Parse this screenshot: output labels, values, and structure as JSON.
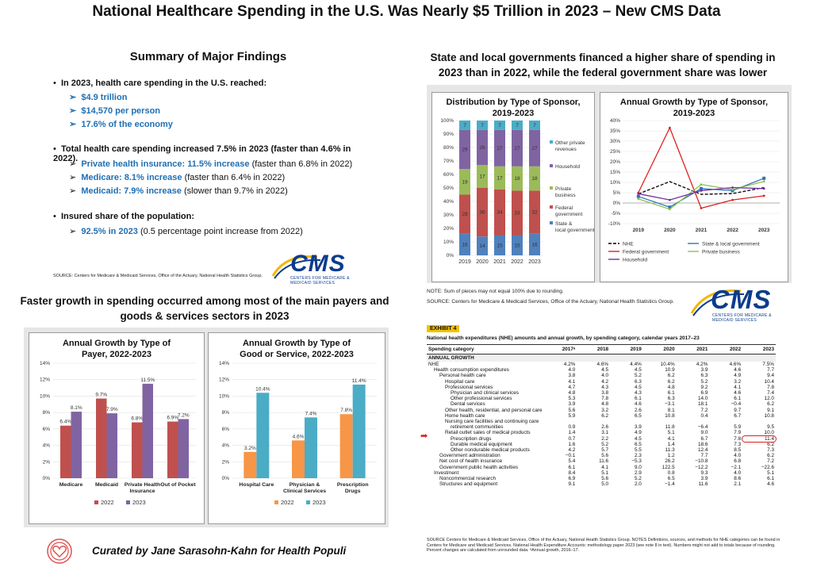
{
  "page_title": "National Healthcare Spending in the U.S. Was Nearly $5 Trillion in 2023 – New CMS Data",
  "summary": {
    "heading": "Summary of Major Findings",
    "b1": "In 2023, health care spending in the U.S. reached:",
    "b1_items": [
      "$4.9 trillion",
      "$14,570 per person",
      "17.6% of the economy"
    ],
    "b2": "Total health care spending increased 7.5% in 2023 (faster than 4.6% in 2022).",
    "b2_items": [
      {
        "hl": "Private health insurance: 11.5% increase",
        "rest": " (faster than 6.8% in 2022)"
      },
      {
        "hl": "Medicare: 8.1% increase",
        "rest": " (faster than 6.4% in 2022)"
      },
      {
        "hl": "Medicaid: 7.9% increase",
        "rest": " (slower than 9.7% in 2022)"
      }
    ],
    "b3": "Insured share of the population:",
    "b3_items": [
      {
        "hl": "92.5% in 2023",
        "rest": " (0.5 percentage point increase from 2022)"
      }
    ],
    "source": "SOURCE: Centers for Medicare & Medicaid Services, Office of the Actuary, National Health Statistics Group."
  },
  "cms_logo": {
    "text": "CMS",
    "sub": "CENTERS FOR MEDICARE & MEDICAID SERVICES"
  },
  "sponsor_heading": "State and local governments financed a higher share of spending in 2023 than in 2022, while the federal government share was lower",
  "sponsor_note": "NOTE: Sum of pieces may not equal 100% due to rounding.",
  "sponsor_source": "SOURCE: Centers for Medicare & Medicaid Services, Office of the Actuary, National Health Statistics Group.",
  "growth_heading": "Faster growth in spending occurred among most of the main payers and goods & services sectors in 2023",
  "exhibit": {
    "label": "EXHIBIT 4",
    "caption": "National health expenditures (NHE) amounts and annual growth, by spending category, calendar years 2017–23",
    "col_header": "Spending category",
    "years": [
      "2017ᵃ",
      "2018",
      "2019",
      "2020",
      "2021",
      "2022",
      "2023"
    ],
    "section": "ANNUAL GROWTH",
    "rows": [
      {
        "label": "NHE",
        "indent": 0,
        "v": [
          "4.2%",
          "4.6%",
          "4.4%",
          "10.4%",
          "4.2%",
          "4.6%",
          "7.5%"
        ]
      },
      {
        "label": "Health consumption expenditures",
        "indent": 1,
        "v": [
          "4.0",
          "4.5",
          "4.5",
          "10.9",
          "3.9",
          "4.6",
          "7.7"
        ]
      },
      {
        "label": "Personal health care",
        "indent": 2,
        "v": [
          "3.8",
          "4.0",
          "5.2",
          "6.2",
          "6.3",
          "4.9",
          "9.4"
        ]
      },
      {
        "label": "Hospital care",
        "indent": 3,
        "v": [
          "4.1",
          "4.2",
          "6.3",
          "6.2",
          "5.2",
          "3.2",
          "10.4"
        ]
      },
      {
        "label": "Professional services",
        "indent": 3,
        "v": [
          "4.7",
          "4.3",
          "4.5",
          "4.8",
          "9.2",
          "4.1",
          "7.8"
        ]
      },
      {
        "label": "Physician and clinical services",
        "indent": 4,
        "v": [
          "4.8",
          "3.8",
          "4.3",
          "6.1",
          "6.9",
          "4.6",
          "7.4"
        ]
      },
      {
        "label": "Other professional services",
        "indent": 4,
        "v": [
          "5.3",
          "7.8",
          "6.1",
          "6.3",
          "14.0",
          "6.1",
          "12.0"
        ]
      },
      {
        "label": "Dental services",
        "indent": 4,
        "v": [
          "3.9",
          "4.8",
          "4.6",
          "−3.1",
          "18.1",
          "−0.4",
          "6.2"
        ]
      },
      {
        "label": "Other health, residential, and personal care",
        "indent": 3,
        "v": [
          "5.6",
          "3.2",
          "2.6",
          "8.1",
          "7.2",
          "9.7",
          "9.1"
        ]
      },
      {
        "label": "Home health care",
        "indent": 3,
        "v": [
          "5.9",
          "6.2",
          "6.5",
          "10.8",
          "0.4",
          "6.7",
          "10.8"
        ]
      },
      {
        "label": "Nursing care facilities and continuing care",
        "indent": 3,
        "v": [
          "",
          "",
          "",
          "",
          "",
          "",
          ""
        ]
      },
      {
        "label": "retirement communities",
        "indent": 4,
        "v": [
          "0.9",
          "2.6",
          "3.9",
          "11.8",
          "−6.4",
          "5.9",
          "9.5"
        ]
      },
      {
        "label": "Retail outlet sales of medical products",
        "indent": 3,
        "v": [
          "1.4",
          "3.1",
          "4.9",
          "5.1",
          "9.0",
          "7.9",
          "10.0"
        ]
      },
      {
        "label": "Prescription drugs",
        "indent": 4,
        "v": [
          "0.7",
          "2.2",
          "4.5",
          "4.1",
          "6.7",
          "7.8",
          "11.4"
        ],
        "arrow": true
      },
      {
        "label": "Durable medical equipment",
        "indent": 4,
        "v": [
          "1.6",
          "5.2",
          "6.5",
          "1.4",
          "18.6",
          "7.3",
          "6.2"
        ]
      },
      {
        "label": "Other nondurable medical products",
        "indent": 4,
        "v": [
          "4.2",
          "5.7",
          "5.5",
          "11.3",
          "12.4",
          "8.5",
          "7.3"
        ]
      },
      {
        "label": "Government administration",
        "indent": 2,
        "v": [
          "−0.1",
          "5.6",
          "2.3",
          "1.2",
          "7.7",
          "4.0",
          "6.2"
        ]
      },
      {
        "label": "Net cost of health insurance",
        "indent": 2,
        "v": [
          "5.4",
          "11.6",
          "−5.3",
          "26.2",
          "−10.8",
          "6.8",
          "7.2"
        ]
      },
      {
        "label": "Government public health activities",
        "indent": 2,
        "v": [
          "6.1",
          "4.1",
          "9.0",
          "122.5",
          "−12.2",
          "−2.1",
          "−22.6"
        ]
      },
      {
        "label": "Investment",
        "indent": 1,
        "v": [
          "8.4",
          "5.1",
          "2.9",
          "0.8",
          "9.3",
          "4.0",
          "5.1"
        ]
      },
      {
        "label": "Noncommercial research",
        "indent": 2,
        "v": [
          "6.9",
          "5.6",
          "5.2",
          "6.5",
          "3.9",
          "8.6",
          "6.1"
        ]
      },
      {
        "label": "Structures and equipment",
        "indent": 2,
        "v": [
          "9.1",
          "5.0",
          "2.0",
          "−1.4",
          "11.6",
          "2.1",
          "4.6"
        ]
      }
    ],
    "source": "SOURCE Centers for Medicare & Medicaid Services, Office of the Actuary, National Health Statistics Group. NOTES Definitions, sources, and methods for NHE categories can be found in Centers for Medicare and Medicaid Services. National Health Expenditure Accounts: methodology paper 2023 (see note 8 in text). Numbers might not add to totals because of rounding. Percent changes are calculated from unrounded data. ᵃAnnual growth, 2016–17."
  },
  "footer": "Curated by Jane Sarasohn-Kahn for Health Populi",
  "chart_data": [
    {
      "type": "bar",
      "title": "Distribution by Type of Sponsor, 2019-2023",
      "stacked": true,
      "categories": [
        "2019",
        "2020",
        "2021",
        "2022",
        "2023"
      ],
      "ylim": [
        0,
        100
      ],
      "yticks": [
        "0%",
        "10%",
        "20%",
        "30%",
        "40%",
        "50%",
        "60%",
        "70%",
        "80%",
        "90%",
        "100%"
      ],
      "series": [
        {
          "name": "State & local government",
          "color": "#4f81bd",
          "values": [
            16,
            14,
            15,
            15,
            16
          ]
        },
        {
          "name": "Federal government",
          "color": "#c0504d",
          "values": [
            29,
            36,
            34,
            33,
            32
          ]
        },
        {
          "name": "Private business",
          "color": "#9bbb59",
          "values": [
            19,
            17,
            17,
            18,
            18
          ]
        },
        {
          "name": "Household",
          "color": "#8064a2",
          "values": [
            29,
            26,
            27,
            27,
            27
          ]
        },
        {
          "name": "Other private revenues",
          "color": "#4bacc6",
          "values": [
            7,
            7,
            7,
            7,
            7
          ]
        }
      ],
      "legend_position": "right"
    },
    {
      "type": "line",
      "title": "Annual Growth by Type of Sponsor, 2019-2023",
      "x": [
        "2019",
        "2020",
        "2021",
        "2022",
        "2023"
      ],
      "ylim": [
        -10,
        40
      ],
      "yticks": [
        "-10%",
        "-5%",
        "0%",
        "5%",
        "10%",
        "15%",
        "20%",
        "25%",
        "30%",
        "35%",
        "40%"
      ],
      "series": [
        {
          "name": "NHE",
          "color": "#000000",
          "dash": true,
          "values": [
            4.4,
            10.4,
            4.2,
            4.6,
            7.5
          ]
        },
        {
          "name": "State & local government",
          "color": "#2e75b6",
          "marker": "square",
          "values": [
            3.2,
            -2.0,
            7.0,
            6.0,
            12.0
          ]
        },
        {
          "name": "Federal government",
          "color": "#e02020",
          "values": [
            5.0,
            36.5,
            -2.5,
            1.5,
            3.5
          ]
        },
        {
          "name": "Private business",
          "color": "#92c050",
          "values": [
            2.0,
            -3.0,
            9.0,
            6.5,
            10.5
          ]
        },
        {
          "name": "Household",
          "color": "#7030a0",
          "values": [
            4.5,
            1.5,
            6.0,
            7.5,
            7.0
          ]
        }
      ],
      "legend_position": "bottom"
    },
    {
      "type": "bar",
      "title": "Annual Growth by Type of Payer, 2022-2023",
      "categories": [
        "Medicare",
        "Medicaid",
        "Private Health Insurance",
        "Out of Pocket"
      ],
      "ylim": [
        0,
        14
      ],
      "yticks": [
        "0%",
        "2%",
        "4%",
        "6%",
        "8%",
        "10%",
        "12%",
        "14%"
      ],
      "series": [
        {
          "name": "2022",
          "color": "#c0504d",
          "values": [
            6.4,
            9.7,
            6.8,
            6.9
          ]
        },
        {
          "name": "2023",
          "color": "#8064a2",
          "values": [
            8.1,
            7.9,
            11.5,
            7.2
          ]
        }
      ],
      "data_labels": [
        [
          "6.4%",
          "9.7%",
          "6.8%",
          "6.9%"
        ],
        [
          "8.1%",
          "7.9%",
          "11.5%",
          "7.2%"
        ]
      ],
      "legend_position": "bottom"
    },
    {
      "type": "bar",
      "title": "Annual Growth by Type of Good or Service, 2022-2023",
      "categories": [
        "Hospital Care",
        "Physician & Clinical Services",
        "Prescription Drugs"
      ],
      "ylim": [
        0,
        14
      ],
      "yticks": [
        "0%",
        "2%",
        "4%",
        "6%",
        "8%",
        "10%",
        "12%",
        "14%"
      ],
      "series": [
        {
          "name": "2022",
          "color": "#f79646",
          "values": [
            3.2,
            4.6,
            7.8
          ]
        },
        {
          "name": "2023",
          "color": "#4bacc6",
          "values": [
            10.4,
            7.4,
            11.4
          ]
        }
      ],
      "data_labels": [
        [
          "3.2%",
          "4.6%",
          "7.8%"
        ],
        [
          "10.4%",
          "7.4%",
          "11.4%"
        ]
      ],
      "legend_position": "bottom"
    }
  ]
}
